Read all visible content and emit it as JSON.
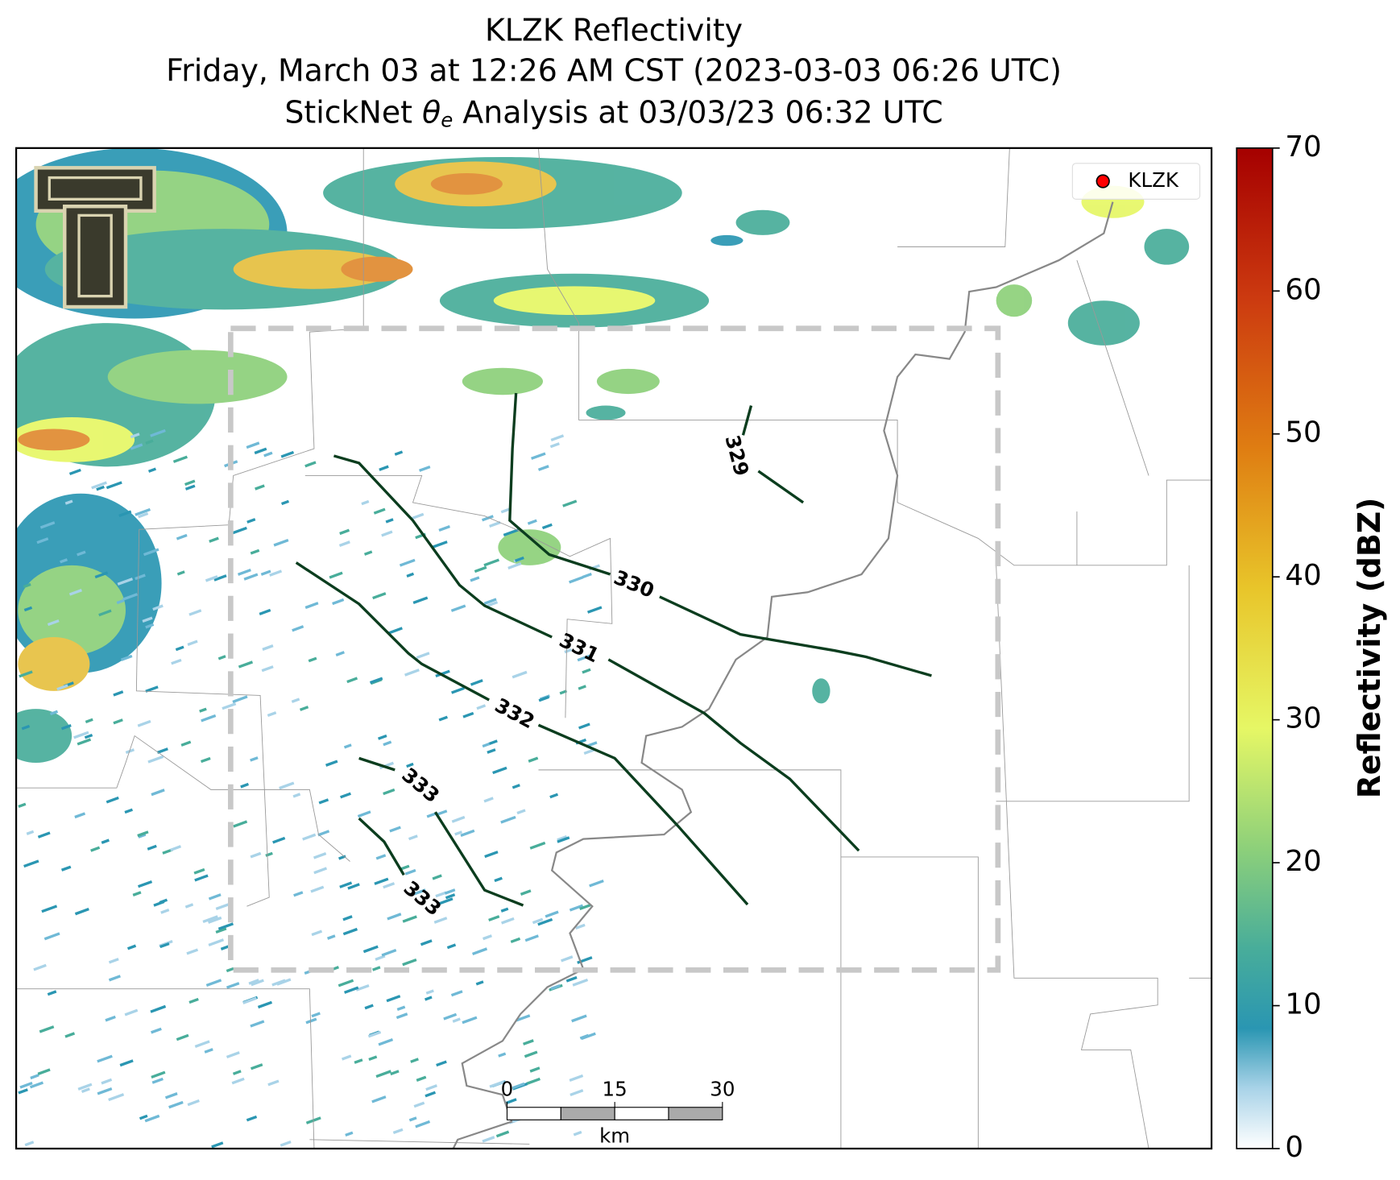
{
  "title": {
    "line1": "KLZK Reflectivity",
    "line2": "Friday, March 03 at 12:26 AM CST (2023-03-03 06:26 UTC)",
    "line3_prefix": "StickNet ",
    "line3_symbol": "θ",
    "line3_subscript": "e",
    "line3_suffix": " Analysis at 03/03/23 06:32 UTC"
  },
  "legend": {
    "station": "KLZK",
    "color": "#ff0000"
  },
  "colorbar": {
    "label": "Reflectivity (dBZ)",
    "lim": [
      0,
      70
    ],
    "ticks": [
      0,
      10,
      20,
      30,
      40,
      50,
      60,
      70
    ]
  },
  "contours": {
    "color": "#0b3d1e",
    "levels": [
      329,
      330,
      331,
      332,
      333,
      333
    ]
  },
  "scale_bar": {
    "ticks": [
      0,
      15,
      30
    ],
    "unit": "km"
  }
}
